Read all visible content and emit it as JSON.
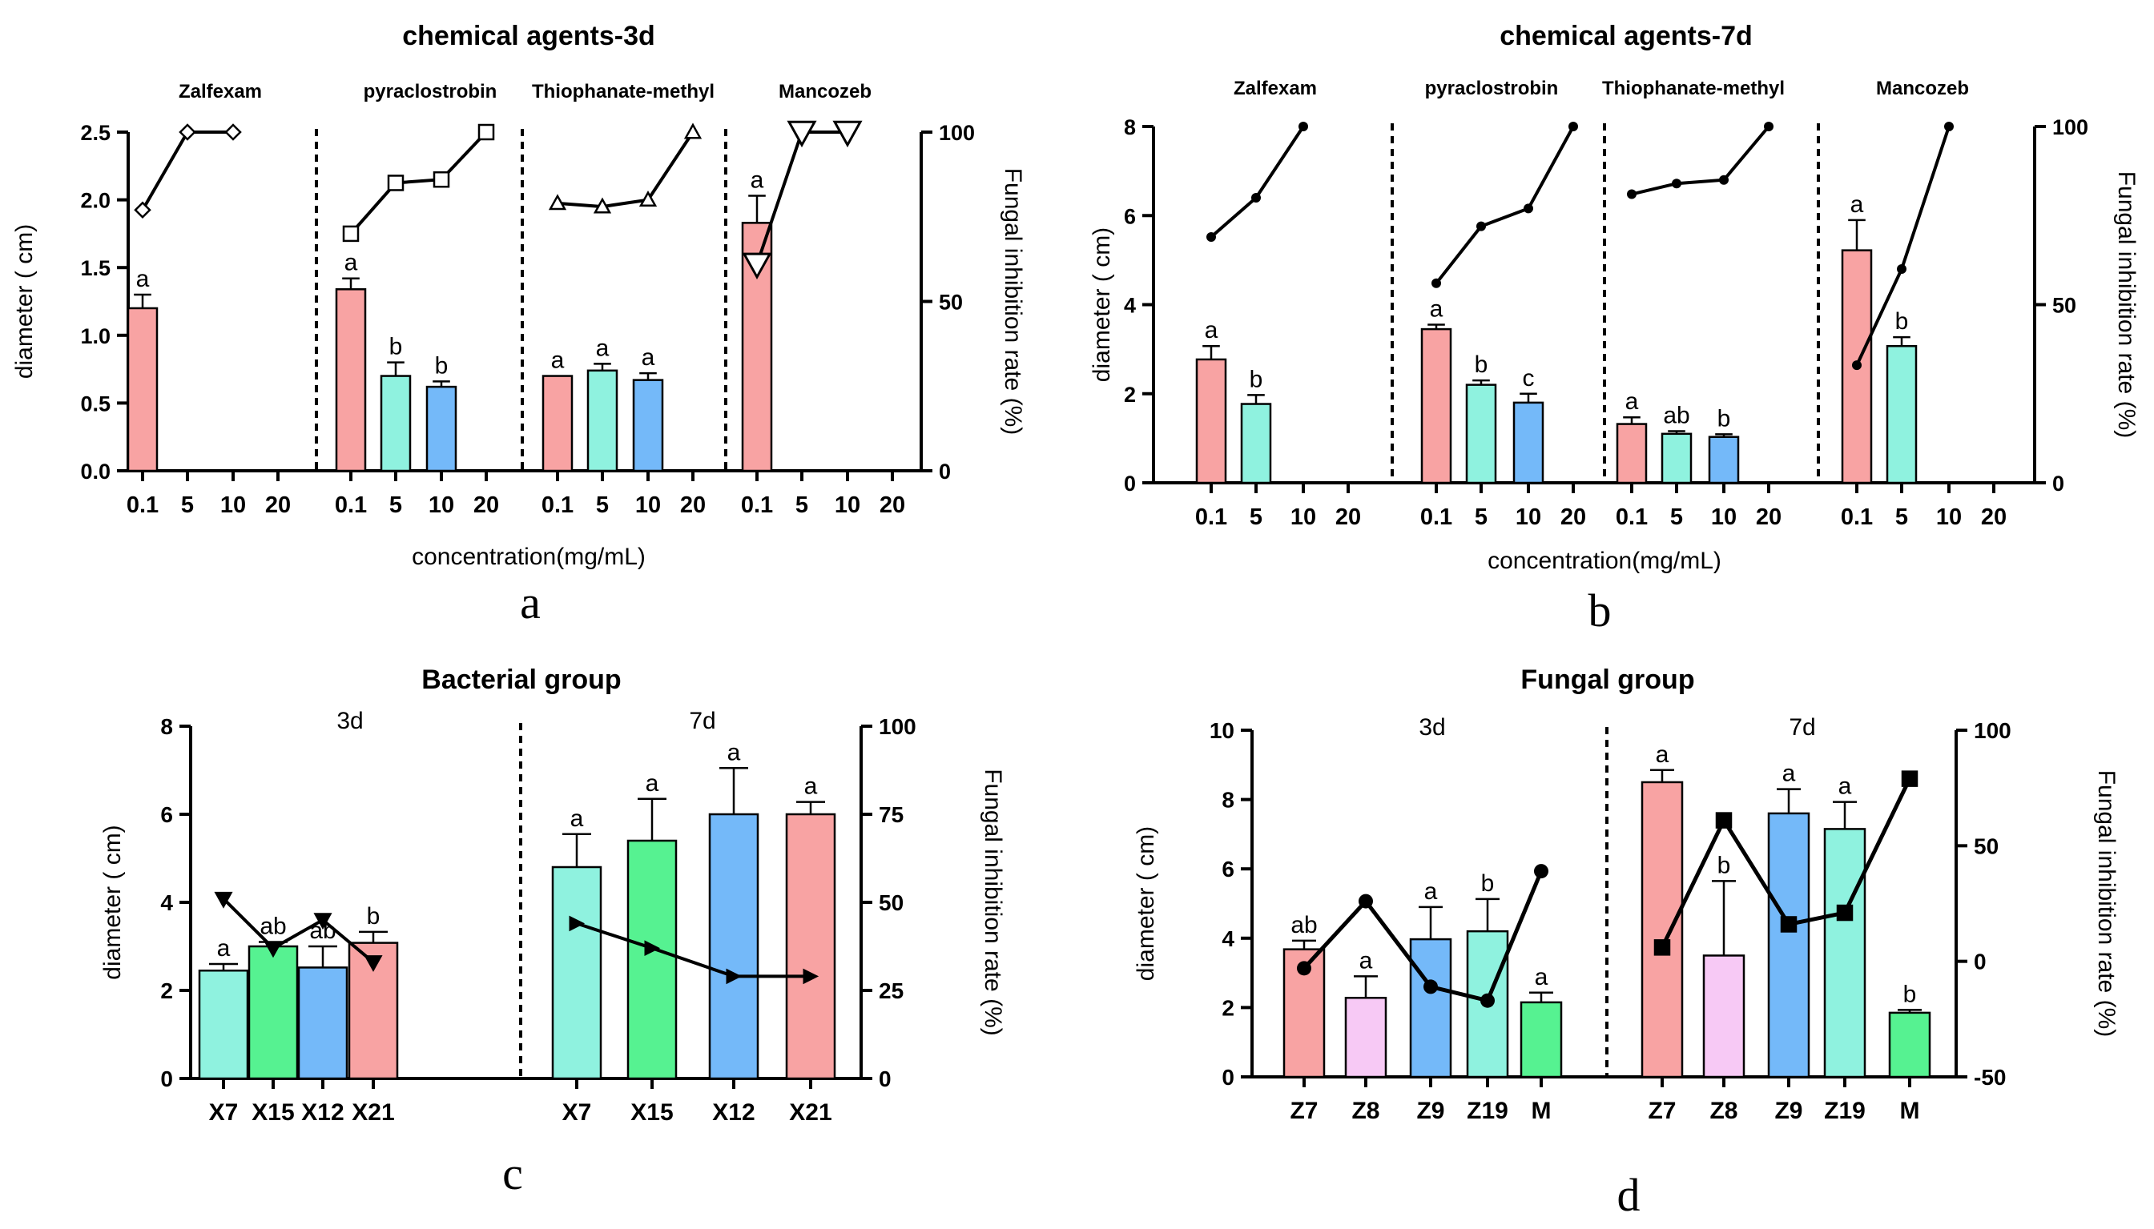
{
  "figure_labels": [
    "a",
    "b",
    "c",
    "d"
  ],
  "chart_data": [
    {
      "id": "a",
      "type": "bar+line",
      "title": "chemical agents-3d",
      "xlabel": "concentration(mg/mL)",
      "ylabel": "diameter ( cm)",
      "y2label": "Fungal inhibition rate (%)",
      "ylim": [
        0,
        2.5
      ],
      "yticks": [
        "0.0",
        "0.5",
        "1.0",
        "1.5",
        "2.0",
        "2.5"
      ],
      "ytick_values": [
        0,
        0.5,
        1.0,
        1.5,
        2.0,
        2.5
      ],
      "y2lim": [
        0,
        100
      ],
      "y2ticks": [
        "0",
        "50",
        "100"
      ],
      "y2tick_values": [
        0,
        50,
        100
      ],
      "categories": [
        "0.1",
        "5",
        "10",
        "20"
      ],
      "groups": [
        {
          "name": "Zalfexam",
          "marker": "diamond",
          "bars": [
            {
              "value": 1.2,
              "err": 0.1,
              "label": "a",
              "color": "#f8a3a3"
            },
            null,
            null,
            null
          ],
          "line": [
            77,
            100,
            100,
            null
          ]
        },
        {
          "name": "pyraclostrobin",
          "marker": "square",
          "bars": [
            {
              "value": 1.34,
              "err": 0.08,
              "label": "a",
              "color": "#f8a3a3"
            },
            {
              "value": 0.7,
              "err": 0.1,
              "label": "b",
              "color": "#8ff2df"
            },
            {
              "value": 0.62,
              "err": 0.04,
              "label": "b",
              "color": "#74b9f9"
            },
            null
          ],
          "line": [
            70,
            85,
            86,
            100
          ]
        },
        {
          "name": "Thiophanate-methyl",
          "marker": "triangle-up",
          "bars": [
            {
              "value": 0.7,
              "err": 0.0,
              "label": "a",
              "color": "#f8a3a3"
            },
            {
              "value": 0.74,
              "err": 0.05,
              "label": "a",
              "color": "#8ff2df"
            },
            {
              "value": 0.67,
              "err": 0.05,
              "label": "a",
              "color": "#74b9f9"
            },
            null
          ],
          "line": [
            79,
            78,
            80,
            100
          ]
        },
        {
          "name": "Mancozeb",
          "marker": "triangle-down",
          "bars": [
            {
              "value": 1.83,
              "err": 0.2,
              "label": "a",
              "color": "#f8a3a3"
            },
            null,
            null,
            null
          ],
          "line": [
            61,
            100,
            100,
            null
          ]
        }
      ]
    },
    {
      "id": "b",
      "type": "bar+line",
      "title": "chemical agents-7d",
      "xlabel": "concentration(mg/mL)",
      "ylabel": "diameter ( cm)",
      "y2label": "Fungal inhibition rate (%)",
      "ylim": [
        0,
        8
      ],
      "yticks": [
        "0",
        "2",
        "4",
        "6",
        "8"
      ],
      "ytick_values": [
        0,
        2,
        4,
        6,
        8
      ],
      "y2lim": [
        0,
        100
      ],
      "y2ticks": [
        "0",
        "50",
        "100"
      ],
      "y2tick_values": [
        0,
        50,
        100
      ],
      "categories": [
        "0.1",
        "5",
        "10",
        "20"
      ],
      "groups": [
        {
          "name": "Zalfexam",
          "marker": "dot",
          "bars": [
            {
              "value": 2.77,
              "err": 0.3,
              "label": "a",
              "color": "#f8a3a3"
            },
            {
              "value": 1.77,
              "err": 0.2,
              "label": "b",
              "color": "#8ff2df"
            },
            null,
            null
          ],
          "line": [
            69,
            80,
            100,
            null
          ]
        },
        {
          "name": "pyraclostrobin",
          "marker": "dot",
          "bars": [
            {
              "value": 3.45,
              "err": 0.1,
              "label": "a",
              "color": "#f8a3a3"
            },
            {
              "value": 2.2,
              "err": 0.1,
              "label": "b",
              "color": "#8ff2df"
            },
            {
              "value": 1.8,
              "err": 0.2,
              "label": "c",
              "color": "#74b9f9"
            },
            null
          ],
          "line": [
            56,
            72,
            77,
            100
          ]
        },
        {
          "name": "Thiophanate-methyl",
          "marker": "dot",
          "bars": [
            {
              "value": 1.32,
              "err": 0.15,
              "label": "a",
              "color": "#f8a3a3"
            },
            {
              "value": 1.1,
              "err": 0.06,
              "label": "ab",
              "color": "#8ff2df"
            },
            {
              "value": 1.03,
              "err": 0.06,
              "label": "b",
              "color": "#74b9f9"
            },
            null
          ],
          "line": [
            81,
            84,
            85,
            100
          ]
        },
        {
          "name": "Mancozeb",
          "marker": "dot",
          "bars": [
            {
              "value": 5.22,
              "err": 0.68,
              "label": "a",
              "color": "#f8a3a3"
            },
            {
              "value": 3.07,
              "err": 0.2,
              "label": "b",
              "color": "#8ff2df"
            },
            null,
            null
          ],
          "line": [
            33,
            60,
            100,
            null
          ]
        }
      ]
    },
    {
      "id": "c",
      "type": "bar+line",
      "title": "Bacterial group",
      "xlabel": "",
      "ylabel": "diameter ( cm)",
      "y2label": "Fungal inhibition rate (%)",
      "ylim": [
        0,
        8
      ],
      "yticks": [
        "0",
        "2",
        "4",
        "6",
        "8"
      ],
      "ytick_values": [
        0,
        2,
        4,
        6,
        8
      ],
      "y2lim": [
        0,
        100
      ],
      "y2ticks": [
        "0",
        "25",
        "50",
        "75",
        "100"
      ],
      "y2tick_values": [
        0,
        25,
        50,
        75,
        100
      ],
      "categories": [
        "X7",
        "X15",
        "X12",
        "X21"
      ],
      "groups": [
        {
          "name": "3d",
          "marker": "triangle-down",
          "bars": [
            {
              "value": 2.45,
              "err": 0.15,
              "label": "a",
              "color": "#8ff2df"
            },
            {
              "value": 3.0,
              "err": 0.1,
              "label": "ab",
              "color": "#56f291"
            },
            {
              "value": 2.52,
              "err": 0.48,
              "label": "ab",
              "color": "#74b9f9"
            },
            {
              "value": 3.08,
              "err": 0.25,
              "label": "b",
              "color": "#f8a3a3"
            }
          ],
          "line": [
            51,
            37,
            45,
            33
          ]
        },
        {
          "name": "7d",
          "marker": "triangle-right",
          "bars": [
            {
              "value": 4.8,
              "err": 0.75,
              "label": "a",
              "color": "#8ff2df"
            },
            {
              "value": 5.4,
              "err": 0.95,
              "label": "a",
              "color": "#56f291"
            },
            {
              "value": 6.0,
              "err": 1.05,
              "label": "a",
              "color": "#74b9f9"
            },
            {
              "value": 6.0,
              "err": 0.28,
              "label": "a",
              "color": "#f8a3a3"
            }
          ],
          "line": [
            44,
            37,
            29,
            29
          ]
        }
      ]
    },
    {
      "id": "d",
      "type": "bar+line",
      "title": "Fungal group",
      "xlabel": "",
      "ylabel": "diameter ( cm)",
      "y2label": "Fungal inhibition rate (%)",
      "ylim": [
        0,
        10
      ],
      "yticks": [
        "0",
        "2",
        "4",
        "6",
        "8",
        "10"
      ],
      "ytick_values": [
        0,
        2,
        4,
        6,
        8,
        10
      ],
      "y2lim": [
        -50,
        100
      ],
      "y2ticks": [
        "-50",
        "0",
        "50",
        "100"
      ],
      "y2tick_values": [
        -50,
        0,
        50,
        100
      ],
      "categories": [
        "Z7",
        "Z8",
        "Z9",
        "Z19",
        "M"
      ],
      "groups": [
        {
          "name": "3d",
          "marker": "dot",
          "bars": [
            {
              "value": 3.68,
              "err": 0.25,
              "label": "ab",
              "color": "#f8a3a3"
            },
            {
              "value": 2.28,
              "err": 0.62,
              "label": "a",
              "color": "#f7c9f5"
            },
            {
              "value": 3.97,
              "err": 0.93,
              "label": "a",
              "color": "#74b9f9"
            },
            {
              "value": 4.2,
              "err": 0.93,
              "label": "b",
              "color": "#8ff2df"
            },
            {
              "value": 2.15,
              "err": 0.28,
              "label": "a",
              "color": "#56f291"
            }
          ],
          "line": [
            -3,
            26,
            -11,
            -17,
            39
          ]
        },
        {
          "name": "7d",
          "marker": "square",
          "bars": [
            {
              "value": 8.5,
              "err": 0.35,
              "label": "a",
              "color": "#f8a3a3"
            },
            {
              "value": 3.5,
              "err": 2.15,
              "label": "b",
              "color": "#f7c9f5"
            },
            {
              "value": 7.6,
              "err": 0.7,
              "label": "a",
              "color": "#74b9f9"
            },
            {
              "value": 7.15,
              "err": 0.78,
              "label": "a",
              "color": "#8ff2df"
            },
            {
              "value": 1.85,
              "err": 0.08,
              "label": "b",
              "color": "#56f291"
            }
          ],
          "line": [
            6,
            61,
            16,
            21,
            79
          ]
        }
      ]
    }
  ]
}
